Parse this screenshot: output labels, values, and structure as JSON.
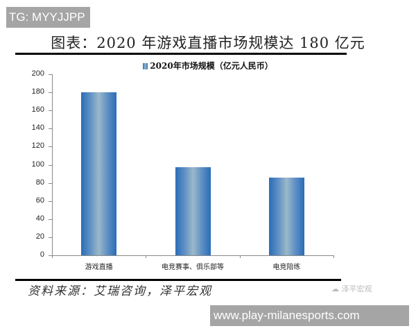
{
  "overlay_top": "TG: MYYJJPP",
  "overlay_bottom": "www.play-milanesports.com",
  "title": "图表：2020 年游戏直播市场规模达 180 亿元",
  "source": "资料来源：艾瑞咨询，泽平宏观",
  "watermark": "泽平宏观",
  "chart_data": {
    "type": "bar",
    "title": "图表：2020 年游戏直播市场规模达 180 亿元",
    "legend": [
      "2020年市场规模（亿元人民币）"
    ],
    "legend_position": "top",
    "categories": [
      "游戏直播",
      "电竞赛事、俱乐部等",
      "电竞陪练"
    ],
    "values": [
      180,
      97,
      86
    ],
    "xlabel": "",
    "ylabel": "",
    "ylim": [
      0,
      200
    ],
    "yticks": [
      "0",
      "20",
      "40",
      "60",
      "80",
      "100",
      "120",
      "140",
      "160",
      "180",
      "200"
    ],
    "grid": false,
    "bar_color": "#2a6db8"
  }
}
